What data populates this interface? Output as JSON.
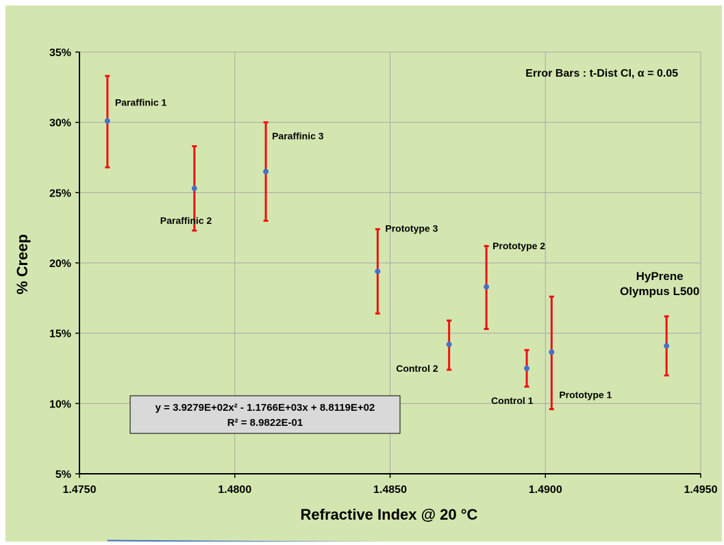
{
  "chart_data": {
    "type": "scatter",
    "xlabel": "Refractive Index @ 20 °C",
    "ylabel": "% Creep",
    "xlim": [
      1.475,
      1.495
    ],
    "ylim": [
      5,
      35
    ],
    "x_ticks": [
      "1.4750",
      "1.4800",
      "1.4850",
      "1.4900",
      "1.4950"
    ],
    "y_ticks": [
      "5%",
      "10%",
      "15%",
      "20%",
      "25%",
      "30%",
      "35%"
    ],
    "grid": true,
    "annotation": "Error Bars : t-Dist CI, α = 0.05",
    "equation": [
      "y = 3.9279E+02x² - 1.1766E+03x + 8.8119E+02",
      "R² = 8.9822E-01"
    ],
    "colors": {
      "point": "#4472c4",
      "error_bar": "#ee1111",
      "trendline": "#4472c4",
      "background": "#d4e6b0",
      "plot_area": "#d4e6b0",
      "equation_box": "#d9d9d9"
    },
    "points": [
      {
        "label": "Paraffinic 1",
        "x": 1.4759,
        "y": 30.1,
        "err_low": 26.8,
        "err_high": 33.3
      },
      {
        "label": "Paraffinic 2",
        "x": 1.4787,
        "y": 25.3,
        "err_low": 22.3,
        "err_high": 28.3
      },
      {
        "label": "Paraffinic 3",
        "x": 1.481,
        "y": 26.5,
        "err_low": 23.0,
        "err_high": 30.0
      },
      {
        "label": "Prototype 3",
        "x": 1.4846,
        "y": 19.4,
        "err_low": 16.4,
        "err_high": 22.4
      },
      {
        "label": "Control 2",
        "x": 1.4869,
        "y": 14.2,
        "err_low": 12.4,
        "err_high": 15.9
      },
      {
        "label": "Prototype 2",
        "x": 1.4881,
        "y": 18.3,
        "err_low": 15.3,
        "err_high": 21.2
      },
      {
        "label": "Control 1",
        "x": 1.4894,
        "y": 12.5,
        "err_low": 11.2,
        "err_high": 13.8
      },
      {
        "label": "Prototype 1",
        "x": 1.4902,
        "y": 13.65,
        "err_low": 9.6,
        "err_high": 17.6
      },
      {
        "label": [
          "HyPrene",
          "Olympus L500"
        ],
        "x": 1.4939,
        "y": 14.1,
        "err_low": 12.0,
        "err_high": 16.2
      }
    ],
    "trendline": {
      "type": "polynomial",
      "degree": 2,
      "a": 392.79,
      "b": -1176.6,
      "c": 881.19,
      "x_range": [
        1.4759,
        1.4939
      ]
    }
  }
}
